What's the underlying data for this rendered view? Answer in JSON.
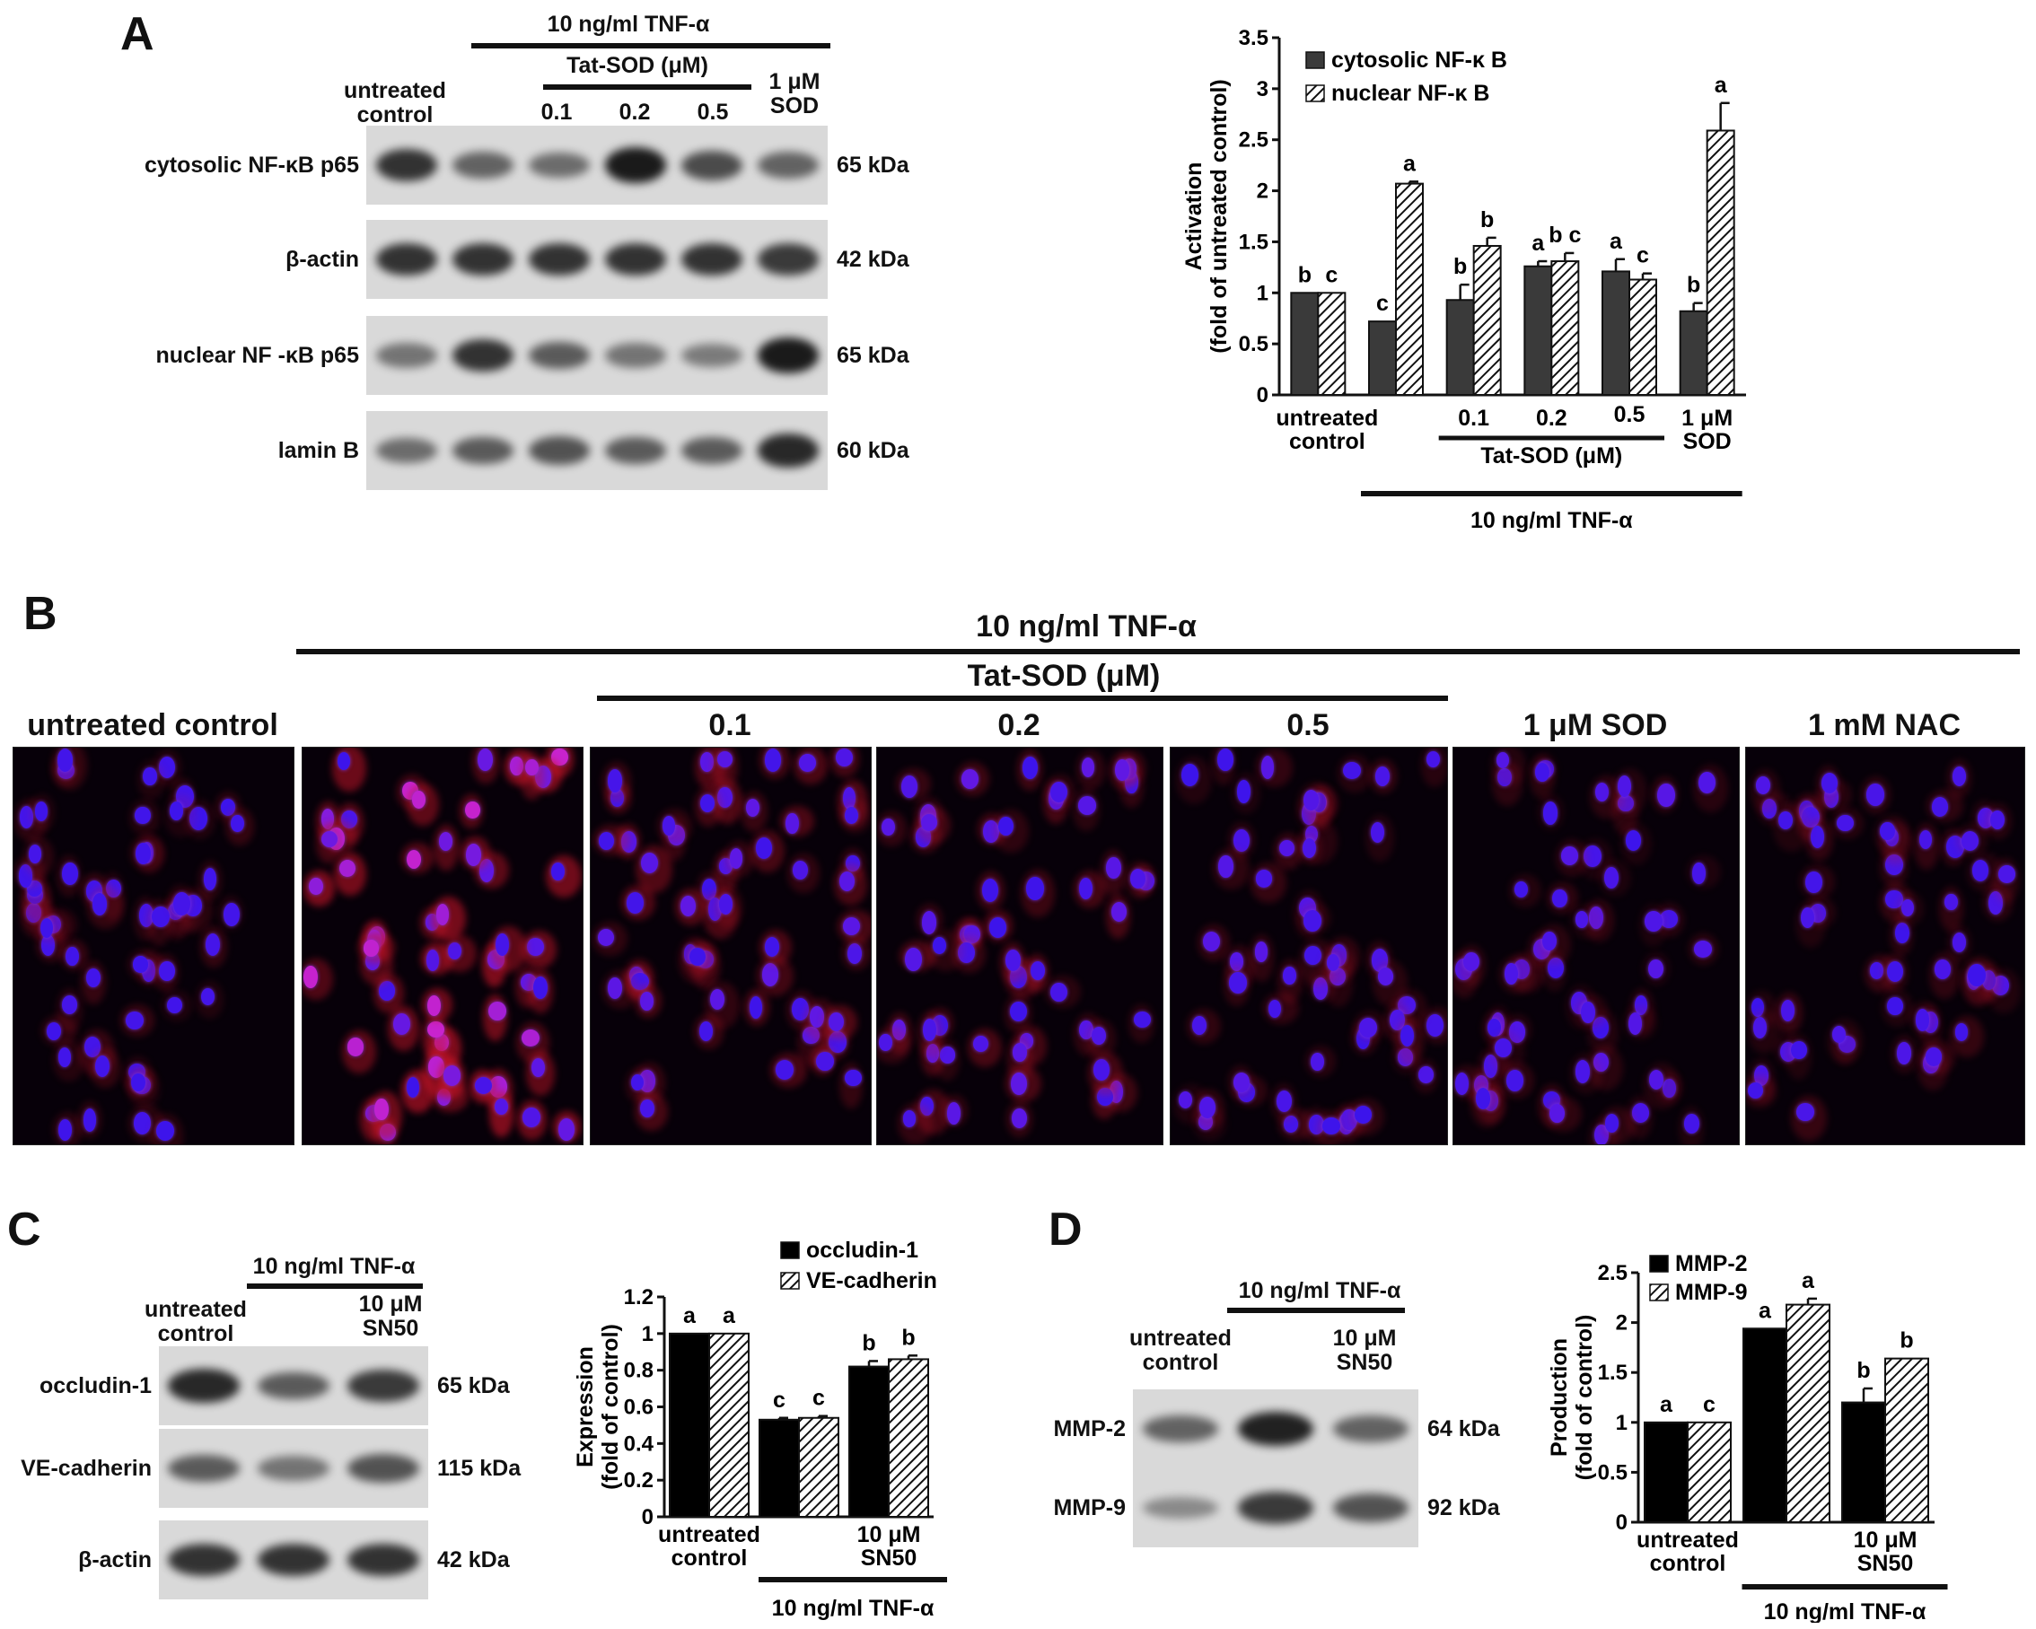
{
  "panels": {
    "A": {
      "letter": "A",
      "treatment": "10 ng/ml TNF-α",
      "tatsod": "Tat-SOD (μM)",
      "lanes": {
        "untreated": "untreated\ncontrol",
        "c01": "0.1",
        "c02": "0.2",
        "c05": "0.5",
        "sod": "1 μM\nSOD"
      },
      "rows": [
        {
          "name": "cytosolic NF-κB p65",
          "kda": "65 kDa",
          "intensity": [
            0.85,
            0.55,
            0.5,
            1.0,
            0.7,
            0.55
          ]
        },
        {
          "name": "β-actin",
          "kda": "42 kDa",
          "intensity": [
            0.85,
            0.85,
            0.85,
            0.85,
            0.85,
            0.8
          ]
        },
        {
          "name": "nuclear NF -κB p65",
          "kda": "65 kDa",
          "intensity": [
            0.45,
            0.85,
            0.6,
            0.45,
            0.4,
            1.0
          ]
        },
        {
          "name": "lamin B",
          "kda": "60 kDa",
          "intensity": [
            0.5,
            0.6,
            0.65,
            0.6,
            0.6,
            0.9
          ]
        }
      ]
    },
    "B": {
      "letter": "B",
      "treatment": "10 ng/ml TNF-α",
      "tatsod": "Tat-SOD (μM)",
      "images": [
        "untreated control",
        "",
        "0.1",
        "0.2",
        "0.5",
        "1 μM SOD",
        "1 mM NAC"
      ]
    },
    "C": {
      "letter": "C",
      "treatment": "10 ng/ml TNF-α",
      "lanes": {
        "untreated": "untreated\ncontrol",
        "sn50": "10 μM\nSN50"
      },
      "rows": [
        {
          "name": "occludin-1",
          "kda": "65 kDa",
          "intensity": [
            0.9,
            0.6,
            0.8
          ]
        },
        {
          "name": "VE-cadherin",
          "kda": "115 kDa",
          "intensity": [
            0.6,
            0.45,
            0.65
          ]
        },
        {
          "name": "β-actin",
          "kda": "42 kDa",
          "intensity": [
            0.85,
            0.85,
            0.85
          ]
        }
      ]
    },
    "D": {
      "letter": "D",
      "treatment": "10 ng/ml TNF-α",
      "lanes": {
        "untreated": "untreated\ncontrol",
        "sn50": "10 μM\nSN50"
      },
      "rows": [
        {
          "name": "MMP-2",
          "kda": "64 kDa",
          "intensity": [
            0.55,
            0.95,
            0.55
          ]
        },
        {
          "name": "MMP-9",
          "kda": "92 kDa",
          "intensity": [
            0.3,
            0.8,
            0.65
          ]
        }
      ]
    }
  },
  "chart_data": [
    {
      "panel": "A",
      "type": "bar",
      "ylabel": "Activation\n(fold of untreated control)",
      "ylim": [
        0,
        3.5
      ],
      "yticks": [
        "0",
        "0.5",
        "1",
        "1.5",
        "2",
        "2.5",
        "3",
        "3.5"
      ],
      "categories": [
        "untreated control",
        "",
        "0.1",
        "0.2",
        "0.5",
        "1 μM SOD"
      ],
      "xlabels": {
        "untreated": "untreated\ncontrol",
        "c01": "0.1",
        "c02": "0.2",
        "c05": "0.5",
        "sod": "1 μM\nSOD",
        "tatsod": "Tat-SOD (μM)",
        "treatment": "10 ng/ml TNF-α"
      },
      "legend_position": "top-left",
      "series": [
        {
          "name": "cytosolic NF-κ B",
          "fill": "solid",
          "color": "#3a3a3a",
          "values": [
            1.0,
            0.72,
            0.93,
            1.26,
            1.21,
            0.82
          ],
          "errors": [
            0,
            0,
            0.15,
            0.05,
            0.12,
            0.08
          ],
          "letters": [
            "b",
            "c",
            "b",
            "a",
            "a",
            "b"
          ]
        },
        {
          "name": "nuclear NF-κ B",
          "fill": "hatched",
          "color": "#111111",
          "values": [
            1.0,
            2.07,
            1.46,
            1.31,
            1.13,
            2.59
          ],
          "errors": [
            0,
            0.02,
            0.08,
            0.08,
            0.06,
            0.27
          ],
          "letters": [
            "c",
            "a",
            "b",
            "b c",
            "c",
            "a"
          ]
        }
      ]
    },
    {
      "panel": "C",
      "type": "bar",
      "ylabel": "Expression\n(fold of control)",
      "ylim": [
        0,
        1.2
      ],
      "yticks": [
        "0",
        "0.2",
        "0.4",
        "0.6",
        "0.8",
        "1",
        "1.2"
      ],
      "categories": [
        "untreated control",
        "",
        "10 μM SN50"
      ],
      "xlabels": {
        "untreated": "untreated\ncontrol",
        "sn50": "10 μM\nSN50",
        "treatment": "10 ng/ml TNF-α"
      },
      "legend_position": "top",
      "series": [
        {
          "name": "occludin-1",
          "fill": "solid",
          "color": "#000000",
          "values": [
            1.0,
            0.53,
            0.82
          ],
          "errors": [
            0,
            0.01,
            0.03
          ],
          "letters": [
            "a",
            "c",
            "b"
          ]
        },
        {
          "name": "VE-cadherin",
          "fill": "hatched",
          "color": "#000000",
          "values": [
            1.0,
            0.54,
            0.86
          ],
          "errors": [
            0,
            0.01,
            0.02
          ],
          "letters": [
            "a",
            "c",
            "b"
          ]
        }
      ]
    },
    {
      "panel": "D",
      "type": "bar",
      "ylabel": "Production\n(fold of control)",
      "ylim": [
        0,
        2.5
      ],
      "yticks": [
        "0",
        "0.5",
        "1",
        "1.5",
        "2",
        "2.5"
      ],
      "categories": [
        "untreated control",
        "",
        "10 μM SN50"
      ],
      "xlabels": {
        "untreated": "untreated\ncontrol",
        "sn50": "10 μM\nSN50",
        "treatment": "10 ng/ml TNF-α"
      },
      "legend_position": "top-left",
      "series": [
        {
          "name": "MMP-2",
          "fill": "solid",
          "color": "#000000",
          "values": [
            1.0,
            1.94,
            1.2
          ],
          "errors": [
            0,
            0,
            0.14
          ],
          "letters": [
            "a",
            "a",
            "b"
          ]
        },
        {
          "name": "MMP-9",
          "fill": "hatched",
          "color": "#000000",
          "values": [
            1.0,
            2.18,
            1.64
          ],
          "errors": [
            0,
            0.06,
            0
          ],
          "letters": [
            "c",
            "a",
            "b"
          ]
        }
      ]
    }
  ]
}
